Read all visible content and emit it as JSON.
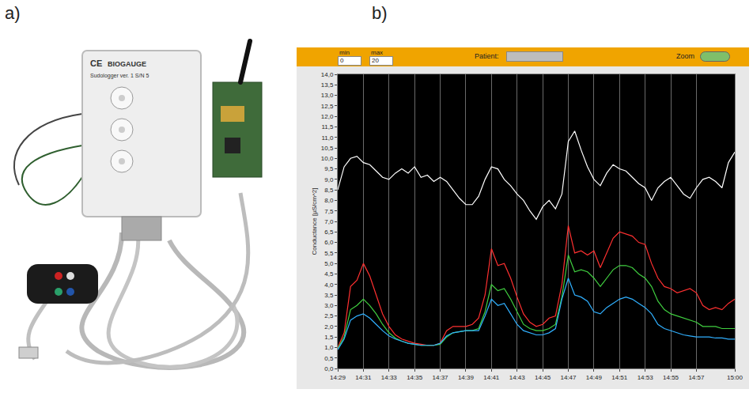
{
  "figure": {
    "labels": [
      "a)",
      "b)"
    ]
  },
  "photo": {
    "texts": [
      "CE",
      "BIOGAUGE",
      "Sudologger ver. 1  S/N 5"
    ]
  },
  "toolbar": {
    "min_label": "min",
    "min_value": "0",
    "max_label": "max",
    "max_value": "20",
    "patient_label": "Patient:",
    "zoom_label": "Zoom"
  },
  "chart_data": {
    "type": "line",
    "y_label": "Conductance [µS/cm^2]",
    "grid": "x",
    "xlim": [
      869,
      900
    ],
    "xticks": [
      {
        "value": 869,
        "label": "14:29"
      },
      {
        "value": 871,
        "label": "14:31"
      },
      {
        "value": 873,
        "label": "14:33"
      },
      {
        "value": 875,
        "label": "14:35"
      },
      {
        "value": 877,
        "label": "14:37"
      },
      {
        "value": 879,
        "label": "14:39"
      },
      {
        "value": 881,
        "label": "14:41"
      },
      {
        "value": 883,
        "label": "14:43"
      },
      {
        "value": 885,
        "label": "14:45"
      },
      {
        "value": 887,
        "label": "14:47"
      },
      {
        "value": 889,
        "label": "14:49"
      },
      {
        "value": 891,
        "label": "14:51"
      },
      {
        "value": 893,
        "label": "14:53"
      },
      {
        "value": 895,
        "label": "14:55"
      },
      {
        "value": 897,
        "label": "14:57"
      },
      {
        "value": 900,
        "label": "15:00"
      }
    ],
    "ylim": [
      0,
      14
    ],
    "yticks": [
      {
        "value": 0,
        "label": "0,0"
      },
      {
        "value": 0.5,
        "label": "0,5"
      },
      {
        "value": 1,
        "label": "1,0"
      },
      {
        "value": 1.5,
        "label": "1,5"
      },
      {
        "value": 2,
        "label": "2,0"
      },
      {
        "value": 2.5,
        "label": "2,5"
      },
      {
        "value": 3,
        "label": "3,0"
      },
      {
        "value": 3.5,
        "label": "3,5"
      },
      {
        "value": 4,
        "label": "4,0"
      },
      {
        "value": 4.5,
        "label": "4,5"
      },
      {
        "value": 5,
        "label": "5,0"
      },
      {
        "value": 5.5,
        "label": "5,5"
      },
      {
        "value": 6,
        "label": "6,0"
      },
      {
        "value": 6.5,
        "label": "6,5"
      },
      {
        "value": 7,
        "label": "7,0"
      },
      {
        "value": 7.5,
        "label": "7,5"
      },
      {
        "value": 8,
        "label": "8,0"
      },
      {
        "value": 8.5,
        "label": "8,5"
      },
      {
        "value": 9,
        "label": "9,0"
      },
      {
        "value": 9.5,
        "label": "9,5"
      },
      {
        "value": 10,
        "label": "10,0"
      },
      {
        "value": 10.5,
        "label": "10,5"
      },
      {
        "value": 11,
        "label": "11,0"
      },
      {
        "value": 11.5,
        "label": "11,5"
      },
      {
        "value": 12,
        "label": "12,0"
      },
      {
        "value": 12.5,
        "label": "12,5"
      },
      {
        "value": 13,
        "label": "13,0"
      },
      {
        "value": 13.5,
        "label": "13,5"
      },
      {
        "value": 14,
        "label": "14,0"
      }
    ],
    "x": [
      869,
      869.5,
      870,
      870.5,
      871,
      871.5,
      872,
      872.5,
      873,
      873.5,
      874,
      874.5,
      875,
      875.5,
      876,
      876.5,
      877,
      877.5,
      878,
      878.5,
      879,
      879.5,
      880,
      880.5,
      881,
      881.5,
      882,
      882.5,
      883,
      883.5,
      884,
      884.5,
      885,
      885.5,
      886,
      886.5,
      887,
      887.5,
      888,
      888.5,
      889,
      889.5,
      890,
      890.5,
      891,
      891.5,
      892,
      892.5,
      893,
      893.5,
      894,
      894.5,
      895,
      895.5,
      896,
      896.5,
      897,
      897.5,
      898,
      898.5,
      899,
      899.5,
      900
    ],
    "series": [
      {
        "color": "#ffffff",
        "values": [
          8.5,
          9.6,
          10.0,
          10.1,
          9.8,
          9.7,
          9.4,
          9.1,
          9.0,
          9.3,
          9.5,
          9.3,
          9.6,
          9.1,
          9.2,
          8.9,
          9.1,
          8.9,
          8.5,
          8.1,
          7.8,
          7.8,
          8.2,
          9.0,
          9.6,
          9.5,
          9.0,
          8.7,
          8.3,
          8.0,
          7.5,
          7.1,
          7.7,
          8.0,
          7.6,
          8.3,
          10.8,
          11.3,
          10.4,
          9.6,
          9.0,
          8.7,
          9.3,
          9.7,
          9.5,
          9.4,
          9.1,
          8.8,
          8.6,
          8.0,
          8.6,
          8.9,
          9.1,
          8.7,
          8.3,
          8.1,
          8.6,
          9.0,
          9.1,
          8.9,
          8.6,
          9.8,
          10.3
        ]
      },
      {
        "color": "#ff3030",
        "values": [
          1.0,
          1.7,
          3.9,
          4.2,
          5.0,
          4.4,
          3.5,
          2.6,
          2.0,
          1.6,
          1.4,
          1.3,
          1.2,
          1.15,
          1.1,
          1.1,
          1.2,
          1.8,
          2.0,
          2.0,
          2.0,
          2.1,
          2.4,
          3.5,
          5.7,
          4.9,
          5.0,
          4.3,
          3.4,
          2.6,
          2.2,
          2.0,
          2.1,
          2.4,
          2.5,
          4.0,
          6.8,
          5.5,
          5.6,
          5.4,
          5.6,
          4.8,
          5.5,
          6.2,
          6.5,
          6.4,
          6.3,
          6.0,
          5.9,
          5.0,
          4.3,
          3.9,
          3.8,
          3.6,
          3.7,
          3.8,
          3.6,
          3.0,
          2.8,
          2.9,
          2.8,
          3.1,
          3.3
        ]
      },
      {
        "color": "#40d040",
        "values": [
          0.95,
          1.5,
          2.8,
          3.0,
          3.3,
          3.0,
          2.6,
          2.1,
          1.7,
          1.45,
          1.3,
          1.2,
          1.15,
          1.1,
          1.1,
          1.1,
          1.15,
          1.5,
          1.7,
          1.75,
          1.8,
          1.8,
          1.9,
          2.7,
          4.0,
          3.7,
          3.8,
          3.3,
          2.7,
          2.1,
          1.9,
          1.8,
          1.8,
          1.9,
          2.1,
          3.4,
          5.4,
          4.6,
          4.7,
          4.6,
          4.3,
          3.9,
          4.3,
          4.7,
          4.9,
          4.9,
          4.8,
          4.5,
          4.3,
          3.9,
          3.2,
          2.8,
          2.6,
          2.5,
          2.4,
          2.3,
          2.2,
          2.0,
          2.0,
          2.0,
          1.9,
          1.9,
          1.9
        ]
      },
      {
        "color": "#30b0ff",
        "values": [
          0.9,
          1.4,
          2.3,
          2.5,
          2.6,
          2.4,
          2.1,
          1.8,
          1.55,
          1.4,
          1.3,
          1.2,
          1.15,
          1.1,
          1.1,
          1.1,
          1.2,
          1.55,
          1.7,
          1.75,
          1.8,
          1.8,
          1.8,
          2.5,
          3.3,
          3.0,
          3.1,
          2.6,
          2.1,
          1.8,
          1.7,
          1.6,
          1.6,
          1.7,
          1.9,
          3.3,
          4.3,
          3.5,
          3.4,
          3.2,
          2.7,
          2.6,
          2.9,
          3.1,
          3.3,
          3.4,
          3.3,
          3.1,
          2.9,
          2.6,
          2.1,
          1.9,
          1.8,
          1.7,
          1.6,
          1.55,
          1.5,
          1.5,
          1.5,
          1.45,
          1.45,
          1.4,
          1.4
        ]
      }
    ]
  }
}
